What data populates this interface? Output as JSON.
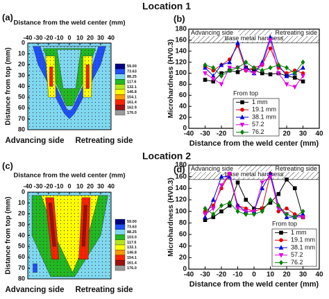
{
  "titles": [
    "Location 1",
    "Location 2"
  ],
  "chart_data": [
    {
      "type": "contour",
      "panel": "(a)",
      "xlabel": "Distance from the weld center (mm)",
      "ylabel": "Distance from top (mm)",
      "xlim": [
        -40,
        40
      ],
      "ylim": [
        0,
        80
      ],
      "y_inverted": true,
      "xticks": [
        -40,
        -30,
        -20,
        -10,
        0,
        10,
        20,
        30,
        40
      ],
      "yticks": [
        0,
        10,
        20,
        30,
        40,
        50,
        60,
        70,
        80
      ],
      "side_labels": [
        "Advancing side",
        "Retreating side"
      ],
      "levels": [
        {
          "value": 59,
          "label": "59.00"
        },
        {
          "value": 73.63,
          "label": "73.63"
        },
        {
          "value": 88.25,
          "label": "88.25"
        },
        {
          "value": 117.6,
          "label": "117.6"
        },
        {
          "value": 132.1,
          "label": "132.1"
        },
        {
          "value": 146.8,
          "label": "146.8"
        },
        {
          "value": 154.1,
          "label": "154.1"
        },
        {
          "value": 161.4,
          "label": "161.4"
        },
        {
          "value": 162.9,
          "label": "162.9"
        },
        {
          "value": 176,
          "label": "176.0"
        }
      ],
      "colors": [
        "#000080",
        "#1f4fff",
        "#7fd8f0",
        "#22b822",
        "#b5e61d",
        "#ffff00",
        "#ff9900",
        "#ff2200",
        "#a01010",
        "#9a9a9a"
      ],
      "regions": [
        {
          "value": 88.25,
          "x": [
            -40,
            40,
            40,
            -40
          ],
          "y": [
            0,
            0,
            80,
            80
          ]
        },
        {
          "value": 73.63,
          "x": [
            -35,
            35,
            30,
            5,
            0,
            -5,
            -30
          ],
          "y": [
            3,
            3,
            20,
            65,
            70,
            65,
            20
          ]
        },
        {
          "value": 88.25,
          "x": [
            -28,
            28,
            21,
            2,
            -2,
            -21
          ],
          "y": [
            3,
            3,
            24,
            62,
            62,
            24
          ]
        },
        {
          "value": 117.6,
          "x": [
            -25,
            25,
            16,
            3,
            -3,
            -16
          ],
          "y": [
            5,
            5,
            30,
            58,
            58,
            30
          ]
        },
        {
          "value": 88.25,
          "x": [
            -12,
            11,
            6,
            -6
          ],
          "y": [
            6,
            6,
            42,
            42
          ]
        },
        {
          "value": 146.8,
          "x": [
            -23,
            -14,
            -13,
            -20
          ],
          "y": [
            12,
            12,
            50,
            50
          ]
        },
        {
          "value": 161.4,
          "x": [
            -19,
            -16,
            -16,
            -19
          ],
          "y": [
            22,
            22,
            40,
            40
          ]
        },
        {
          "value": 146.8,
          "x": [
            13,
            22,
            21,
            13
          ],
          "y": [
            12,
            12,
            50,
            50
          ]
        },
        {
          "value": 161.4,
          "x": [
            16,
            19,
            19,
            16
          ],
          "y": [
            20,
            20,
            42,
            42
          ]
        }
      ]
    },
    {
      "type": "line",
      "panel": "(b)",
      "xlabel": "Distance from the weld center (mm)",
      "ylabel": "Microhardness (HV0.3)",
      "xlim": [
        -40,
        40
      ],
      "ylim": [
        0,
        180
      ],
      "xticks": [
        -40,
        -30,
        -20,
        -10,
        0,
        10,
        20,
        30,
        40
      ],
      "yticks": [
        0,
        20,
        40,
        60,
        80,
        100,
        120,
        140,
        160,
        180
      ],
      "side_labels": [
        "Advancing side",
        "Retreating side"
      ],
      "band": {
        "label": "Base metal hardness",
        "ylim": [
          155,
          180
        ]
      },
      "legend_title": "From top",
      "legend": "lower center",
      "x": [
        -30,
        -25,
        -20,
        -15,
        -10,
        -5,
        0,
        5,
        10,
        15,
        20,
        25,
        30
      ],
      "series": [
        {
          "name": "1 mm",
          "color": "#000000",
          "marker": "square",
          "values": [
            88,
            85,
            100,
            105,
            102,
            110,
            105,
            100,
            98,
            100,
            95,
            92,
            85
          ]
        },
        {
          "name": "19.1 mm",
          "color": "#e00000",
          "marker": "circle",
          "values": [
            112,
            105,
            115,
            125,
            150,
            105,
            110,
            115,
            145,
            110,
            100,
            105,
            100
          ]
        },
        {
          "name": "38.1 mm",
          "color": "#0000e0",
          "marker": "triangle",
          "values": [
            110,
            95,
            115,
            120,
            155,
            110,
            100,
            120,
            165,
            115,
            95,
            100,
            110
          ]
        },
        {
          "name": "57.2",
          "color": "#e000e0",
          "marker": "triangle-down",
          "values": [
            100,
            90,
            80,
            110,
            110,
            105,
            100,
            115,
            160,
            100,
            80,
            75,
            95
          ]
        },
        {
          "name": "76.2",
          "color": "#008000",
          "marker": "diamond",
          "values": [
            115,
            110,
            95,
            105,
            110,
            120,
            110,
            105,
            110,
            115,
            110,
            100,
            120
          ]
        }
      ]
    },
    {
      "type": "contour",
      "panel": "(c)",
      "xlabel": "Distance from the weld center (mm)",
      "ylabel": "Distance from top (mm)",
      "xlim": [
        -40,
        40
      ],
      "ylim": [
        0,
        80
      ],
      "y_inverted": true,
      "xticks": [
        -40,
        -30,
        -20,
        -10,
        0,
        10,
        20,
        30,
        40
      ],
      "yticks": [
        0,
        10,
        20,
        30,
        40,
        50,
        60,
        70,
        80
      ],
      "side_labels": [
        "Advancing side",
        "Retreating side"
      ],
      "levels": [
        {
          "value": 59,
          "label": "59.00"
        },
        {
          "value": 73.63,
          "label": "73.63"
        },
        {
          "value": 88.25,
          "label": "88.25"
        },
        {
          "value": 103,
          "label": "103.0"
        },
        {
          "value": 117.6,
          "label": "117.6"
        },
        {
          "value": 132.1,
          "label": "132.1"
        },
        {
          "value": 146.8,
          "label": "146.8"
        },
        {
          "value": 154.1,
          "label": "154.1"
        },
        {
          "value": 161.4,
          "label": "161.4"
        },
        {
          "value": 176,
          "label": "176.0"
        }
      ],
      "colors": [
        "#000080",
        "#1f4fff",
        "#7fd8f0",
        "#22b822",
        "#b5e61d",
        "#ffff00",
        "#ff9900",
        "#ff2200",
        "#a01010",
        "#9a9a9a"
      ],
      "regions": [
        {
          "value": 88.25,
          "x": [
            -40,
            40,
            40,
            -40
          ],
          "y": [
            0,
            0,
            80,
            80
          ]
        },
        {
          "value": 103,
          "x": [
            -36,
            37,
            30,
            5,
            -18,
            -36
          ],
          "y": [
            3,
            3,
            40,
            78,
            78,
            40
          ]
        },
        {
          "value": 132.1,
          "x": [
            -27,
            28,
            18,
            3,
            -14
          ],
          "y": [
            3,
            3,
            40,
            74,
            40
          ]
        },
        {
          "value": 154.1,
          "x": [
            -23,
            -15,
            -10,
            -17
          ],
          "y": [
            5,
            5,
            62,
            62
          ]
        },
        {
          "value": 161.4,
          "x": [
            -20,
            -17,
            -13,
            -16
          ],
          "y": [
            10,
            10,
            50,
            50
          ]
        },
        {
          "value": 154.1,
          "x": [
            12,
            20,
            18,
            9
          ],
          "y": [
            5,
            5,
            62,
            62
          ]
        },
        {
          "value": 161.4,
          "x": [
            14,
            17,
            15,
            12
          ],
          "y": [
            12,
            12,
            50,
            50
          ]
        },
        {
          "value": 73.63,
          "x": [
            -35,
            -31,
            -31,
            -35
          ],
          "y": [
            66,
            66,
            74,
            74
          ]
        }
      ]
    },
    {
      "type": "line",
      "panel": "(d)",
      "xlabel": "Distance from the weld center (mm)",
      "ylabel": "Microhardness (HV0.3)",
      "xlim": [
        -40,
        40
      ],
      "ylim": [
        0,
        180
      ],
      "xticks": [
        -40,
        -30,
        -20,
        -10,
        0,
        10,
        20,
        30,
        40
      ],
      "yticks": [
        0,
        20,
        40,
        60,
        80,
        100,
        120,
        140,
        160,
        180
      ],
      "side_labels": [
        "Advancing side",
        "Retreating side"
      ],
      "band": {
        "label": "Base metal hardness",
        "ylim": [
          155,
          180
        ]
      },
      "legend_title": "From top",
      "legend": "lower right",
      "x": [
        -30,
        -25,
        -20,
        -15,
        -10,
        -5,
        0,
        5,
        10,
        15,
        20,
        25,
        30
      ],
      "series": [
        {
          "name": "1 mm",
          "color": "#000000",
          "marker": "square",
          "values": [
            85,
            90,
            100,
            110,
            150,
            120,
            105,
            105,
            115,
            130,
            155,
            140,
            90
          ]
        },
        {
          "name": "19.1 mm",
          "color": "#e00000",
          "marker": "circle",
          "values": [
            100,
            110,
            140,
            165,
            110,
            105,
            100,
            105,
            165,
            100,
            105,
            95,
            90
          ]
        },
        {
          "name": "38.1 mm",
          "color": "#0000e0",
          "marker": "triangle",
          "values": [
            90,
            120,
            160,
            160,
            110,
            100,
            100,
            140,
            165,
            110,
            90,
            90,
            95
          ]
        },
        {
          "name": "57.2",
          "color": "#e000e0",
          "marker": "triangle-down",
          "values": [
            95,
            105,
            145,
            165,
            105,
            100,
            100,
            150,
            160,
            105,
            95,
            90,
            90
          ]
        },
        {
          "name": "76.2",
          "color": "#008000",
          "marker": "diamond",
          "values": [
            105,
            95,
            110,
            115,
            100,
            95,
            95,
            100,
            120,
            110,
            95,
            90,
            100
          ]
        }
      ]
    }
  ]
}
